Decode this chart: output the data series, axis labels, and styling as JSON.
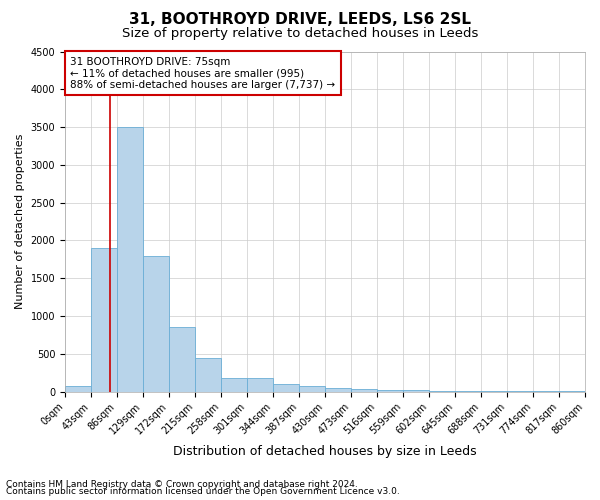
{
  "title1": "31, BOOTHROYD DRIVE, LEEDS, LS6 2SL",
  "title2": "Size of property relative to detached houses in Leeds",
  "xlabel": "Distribution of detached houses by size in Leeds",
  "ylabel": "Number of detached properties",
  "bin_edges": [
    0,
    43,
    86,
    129,
    172,
    215,
    258,
    301,
    344,
    387,
    430,
    473,
    516,
    559,
    602,
    645,
    688,
    731,
    774,
    817,
    860
  ],
  "bar_heights": [
    75,
    1900,
    3500,
    1800,
    850,
    450,
    175,
    175,
    100,
    75,
    50,
    30,
    20,
    15,
    10,
    8,
    5,
    5,
    3,
    2
  ],
  "bar_color": "#b8d4ea",
  "bar_edgecolor": "#6aaed6",
  "property_size": 75,
  "property_line_color": "#cc0000",
  "annotation_text": "31 BOOTHROYD DRIVE: 75sqm\n← 11% of detached houses are smaller (995)\n88% of semi-detached houses are larger (7,737) →",
  "annotation_box_color": "#ffffff",
  "annotation_border_color": "#cc0000",
  "ylim": [
    0,
    4500
  ],
  "yticks": [
    0,
    500,
    1000,
    1500,
    2000,
    2500,
    3000,
    3500,
    4000,
    4500
  ],
  "footnote1": "Contains HM Land Registry data © Crown copyright and database right 2024.",
  "footnote2": "Contains public sector information licensed under the Open Government Licence v3.0.",
  "title1_fontsize": 11,
  "title2_fontsize": 9.5,
  "xlabel_fontsize": 9,
  "ylabel_fontsize": 8,
  "tick_fontsize": 7,
  "annotation_fontsize": 7.5,
  "footnote_fontsize": 6.5
}
